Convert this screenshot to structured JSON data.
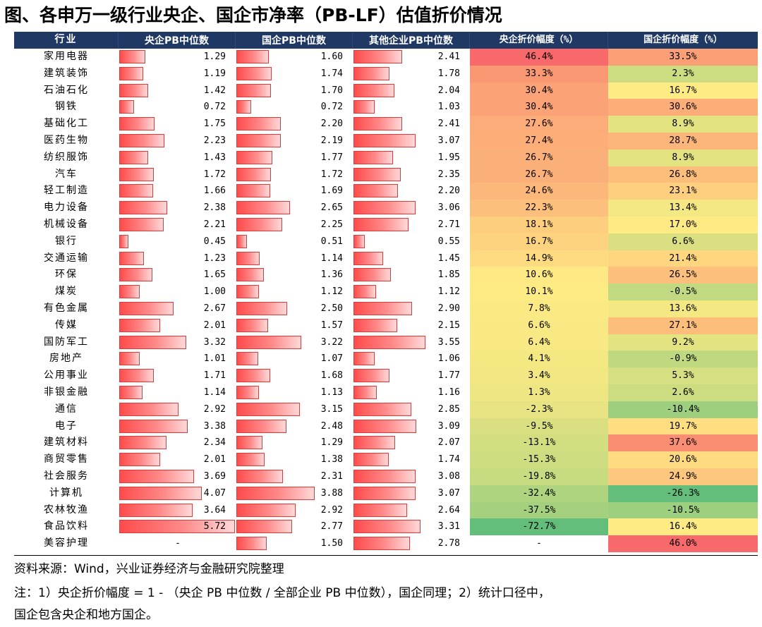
{
  "title": "图、各申万一级行业央企、国企市净率（PB-LF）估值折价情况",
  "headers": {
    "industry": "行业",
    "central_pb": "央企PB中位数",
    "state_pb": "国企PB中位数",
    "other_pb": "其他企业PB中位数",
    "central_discount": "央企折价幅度（%）",
    "state_discount": "国企折价幅度（%）"
  },
  "bar_max": 5.72,
  "colors": {
    "header_bg": "#1f3864",
    "bar_fill": "#ff4b4b",
    "bar_border": "#e03a3a",
    "scale_low": "#63be7b",
    "scale_mid": "#ffeb84",
    "scale_high": "#f8696b"
  },
  "rows": [
    {
      "industry": "家用电器",
      "central_pb": "1.29",
      "state_pb": "1.60",
      "other_pb": "2.41",
      "central_discount": "46.4%",
      "state_discount": "33.5%"
    },
    {
      "industry": "建筑装饰",
      "central_pb": "1.19",
      "state_pb": "1.74",
      "other_pb": "1.78",
      "central_discount": "33.3%",
      "state_discount": "2.3%"
    },
    {
      "industry": "石油石化",
      "central_pb": "1.42",
      "state_pb": "1.70",
      "other_pb": "2.04",
      "central_discount": "30.4%",
      "state_discount": "16.7%"
    },
    {
      "industry": "钢铁",
      "central_pb": "0.72",
      "state_pb": "0.72",
      "other_pb": "1.03",
      "central_discount": "30.4%",
      "state_discount": "30.6%"
    },
    {
      "industry": "基础化工",
      "central_pb": "1.75",
      "state_pb": "2.20",
      "other_pb": "2.41",
      "central_discount": "27.6%",
      "state_discount": "8.9%"
    },
    {
      "industry": "医药生物",
      "central_pb": "2.23",
      "state_pb": "2.19",
      "other_pb": "3.07",
      "central_discount": "27.4%",
      "state_discount": "28.7%"
    },
    {
      "industry": "纺织服饰",
      "central_pb": "1.43",
      "state_pb": "1.77",
      "other_pb": "1.95",
      "central_discount": "26.7%",
      "state_discount": "8.9%"
    },
    {
      "industry": "汽车",
      "central_pb": "1.72",
      "state_pb": "1.72",
      "other_pb": "2.35",
      "central_discount": "26.7%",
      "state_discount": "26.8%"
    },
    {
      "industry": "轻工制造",
      "central_pb": "1.66",
      "state_pb": "1.69",
      "other_pb": "2.20",
      "central_discount": "24.6%",
      "state_discount": "23.1%"
    },
    {
      "industry": "电力设备",
      "central_pb": "2.38",
      "state_pb": "2.65",
      "other_pb": "3.06",
      "central_discount": "22.3%",
      "state_discount": "13.4%"
    },
    {
      "industry": "机械设备",
      "central_pb": "2.21",
      "state_pb": "2.25",
      "other_pb": "2.71",
      "central_discount": "18.1%",
      "state_discount": "17.0%"
    },
    {
      "industry": "银行",
      "central_pb": "0.45",
      "state_pb": "0.51",
      "other_pb": "0.55",
      "central_discount": "16.7%",
      "state_discount": "6.6%"
    },
    {
      "industry": "交通运输",
      "central_pb": "1.23",
      "state_pb": "1.14",
      "other_pb": "1.45",
      "central_discount": "14.9%",
      "state_discount": "21.4%"
    },
    {
      "industry": "环保",
      "central_pb": "1.65",
      "state_pb": "1.36",
      "other_pb": "1.85",
      "central_discount": "10.6%",
      "state_discount": "26.5%"
    },
    {
      "industry": "煤炭",
      "central_pb": "1.00",
      "state_pb": "1.12",
      "other_pb": "1.12",
      "central_discount": "10.1%",
      "state_discount": "-0.5%"
    },
    {
      "industry": "有色金属",
      "central_pb": "2.67",
      "state_pb": "2.50",
      "other_pb": "2.90",
      "central_discount": "7.8%",
      "state_discount": "13.6%"
    },
    {
      "industry": "传媒",
      "central_pb": "2.01",
      "state_pb": "1.57",
      "other_pb": "2.15",
      "central_discount": "6.6%",
      "state_discount": "27.1%"
    },
    {
      "industry": "国防军工",
      "central_pb": "3.32",
      "state_pb": "3.22",
      "other_pb": "3.55",
      "central_discount": "6.4%",
      "state_discount": "9.2%"
    },
    {
      "industry": "房地产",
      "central_pb": "1.01",
      "state_pb": "1.07",
      "other_pb": "1.06",
      "central_discount": "4.1%",
      "state_discount": "-0.9%"
    },
    {
      "industry": "公用事业",
      "central_pb": "1.71",
      "state_pb": "1.68",
      "other_pb": "1.77",
      "central_discount": "3.4%",
      "state_discount": "5.3%"
    },
    {
      "industry": "非银金融",
      "central_pb": "1.14",
      "state_pb": "1.13",
      "other_pb": "1.16",
      "central_discount": "1.3%",
      "state_discount": "2.6%"
    },
    {
      "industry": "通信",
      "central_pb": "2.92",
      "state_pb": "3.15",
      "other_pb": "2.85",
      "central_discount": "-2.3%",
      "state_discount": "-10.4%"
    },
    {
      "industry": "电子",
      "central_pb": "3.38",
      "state_pb": "2.48",
      "other_pb": "3.09",
      "central_discount": "-9.5%",
      "state_discount": "19.7%"
    },
    {
      "industry": "建筑材料",
      "central_pb": "2.34",
      "state_pb": "1.29",
      "other_pb": "2.07",
      "central_discount": "-13.1%",
      "state_discount": "37.6%"
    },
    {
      "industry": "商贸零售",
      "central_pb": "2.01",
      "state_pb": "1.38",
      "other_pb": "1.74",
      "central_discount": "-15.3%",
      "state_discount": "20.6%"
    },
    {
      "industry": "社会服务",
      "central_pb": "3.69",
      "state_pb": "2.31",
      "other_pb": "3.08",
      "central_discount": "-19.8%",
      "state_discount": "24.9%"
    },
    {
      "industry": "计算机",
      "central_pb": "4.07",
      "state_pb": "3.88",
      "other_pb": "3.07",
      "central_discount": "-32.4%",
      "state_discount": "-26.3%"
    },
    {
      "industry": "农林牧渔",
      "central_pb": "3.64",
      "state_pb": "2.92",
      "other_pb": "2.64",
      "central_discount": "-37.5%",
      "state_discount": "-10.5%"
    },
    {
      "industry": "食品饮料",
      "central_pb": "5.72",
      "state_pb": "2.77",
      "other_pb": "3.31",
      "central_discount": "-72.7%",
      "state_discount": "16.4%"
    },
    {
      "industry": "美容护理",
      "central_pb": "-",
      "state_pb": "1.50",
      "other_pb": "2.78",
      "central_discount": "-",
      "state_discount": "46.0%"
    }
  ],
  "source_note": "资料来源：Wind，兴业证券经济与金融研究院整理",
  "note_line1": "注：1）央企折价幅度 = 1 - （央企 PB 中位数 / 全部企业 PB 中位数），国企同理；2）统计口径中，",
  "note_line2": "国企包含央企和地方国企。"
}
